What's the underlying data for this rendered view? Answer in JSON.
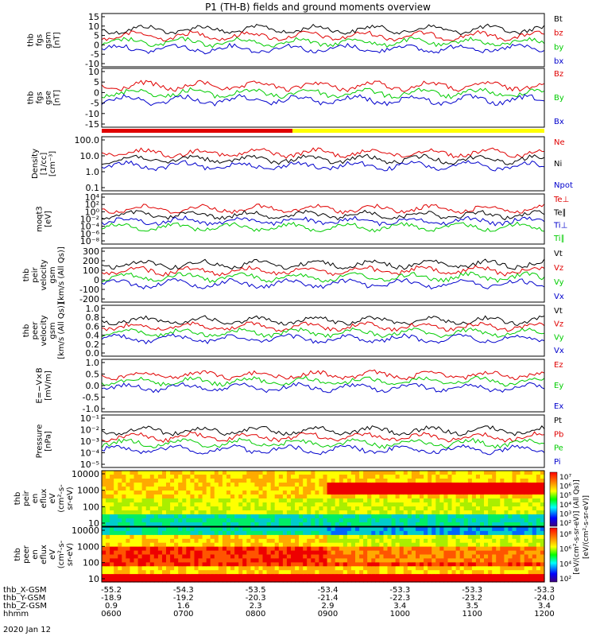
{
  "title": "P1 (TH-B) fields and ground moments overview",
  "footer": {
    "rows": [
      {
        "label": "thb_X-GSM",
        "values": [
          "-55.2",
          "-54.3",
          "-53.5",
          "-53.4",
          "-53.3",
          "-53.3",
          "-53.3"
        ]
      },
      {
        "label": "thb_Y-GSM",
        "values": [
          "-18.9",
          "-19.2",
          "-20.3",
          "-21.4",
          "-22.3",
          "-23.2",
          "-24.0"
        ]
      },
      {
        "label": "thb_Z-GSM",
        "values": [
          "0.9",
          "1.6",
          "2.3",
          "2.9",
          "3.4",
          "3.5",
          "3.4"
        ]
      },
      {
        "label": "hhmm",
        "values": [
          "0600",
          "0700",
          "0800",
          "0900",
          "1000",
          "1100",
          "1200"
        ]
      }
    ],
    "date": "2020 Jan 12"
  },
  "colorbar": {
    "ticks": [
      "10⁷",
      "10⁶",
      "10⁵",
      "10⁴",
      "10³",
      "10²"
    ],
    "ticks2": [
      "10⁸",
      "10⁶",
      "10⁴",
      "10²"
    ],
    "label": "[eV/(cm²-s-sr-eV)] (All Qs)]",
    "label2": "[eV/(cm²-s-sr-eV)]"
  },
  "colors": {
    "black": "#000000",
    "red": "#e00000",
    "green": "#00cc00",
    "blue": "#0000cc",
    "yellow": "#ffff00"
  },
  "chart_data": [
    {
      "id": "fgs_gsm",
      "type": "line",
      "ylabel": [
        "thb",
        "fgs",
        "gsm",
        "[nT]"
      ],
      "yticks": [
        "15",
        "10",
        "5",
        "0",
        "-5",
        "-10"
      ],
      "ylim": [
        -10,
        16
      ],
      "series": [
        {
          "name": "Bt",
          "color": "black"
        },
        {
          "name": "bz",
          "color": "red"
        },
        {
          "name": "by",
          "color": "green"
        },
        {
          "name": "bx",
          "color": "blue"
        }
      ]
    },
    {
      "id": "fgs_gse",
      "type": "line",
      "ylabel": [
        "thb",
        "fgs",
        "gse",
        "[nT]"
      ],
      "yticks": [
        "10",
        "5",
        "0",
        "-5",
        "-10",
        "-15"
      ],
      "ylim": [
        -18,
        12
      ],
      "series": [
        {
          "name": "Bz",
          "color": "red"
        },
        {
          "name": "By",
          "color": "green"
        },
        {
          "name": "Bx",
          "color": "blue"
        }
      ]
    },
    {
      "id": "density",
      "type": "line",
      "ylabel": [
        "Density",
        "[1/cc]",
        "[cm⁻³]"
      ],
      "yticks": [
        "100.0",
        "10.0",
        "1.0",
        "0.1"
      ],
      "log": true,
      "ylim": [
        0.1,
        100
      ],
      "series": [
        {
          "name": "Ne",
          "color": "red"
        },
        {
          "name": "Ni",
          "color": "black"
        },
        {
          "name": "Npot",
          "color": "blue"
        }
      ]
    },
    {
      "id": "temperature",
      "type": "line",
      "ylabel": [
        "moqt3",
        "[eV]"
      ],
      "yticks": [
        "10⁴",
        "10²",
        "10⁰",
        "10⁻²",
        "10⁻⁴",
        "10⁻⁶",
        "10⁻⁸"
      ],
      "log": true,
      "ylim": [
        1e-08,
        10000.0
      ],
      "series": [
        {
          "name": "Te⊥",
          "color": "red"
        },
        {
          "name": "Te∥",
          "color": "black"
        },
        {
          "name": "Ti⊥",
          "color": "blue"
        },
        {
          "name": "Ti∥",
          "color": "green"
        }
      ]
    },
    {
      "id": "peir_velocity",
      "type": "line",
      "ylabel": [
        "thb",
        "peir",
        "velocity",
        "gsm",
        "[km/s (All Qs)]"
      ],
      "yticks": [
        "300",
        "200",
        "100",
        "0",
        "-100",
        "-200"
      ],
      "ylim": [
        -200,
        300
      ],
      "series": [
        {
          "name": "Vt",
          "color": "black"
        },
        {
          "name": "Vz",
          "color": "red"
        },
        {
          "name": "Vy",
          "color": "green"
        },
        {
          "name": "Vx",
          "color": "blue"
        }
      ]
    },
    {
      "id": "peer_velocity",
      "type": "line",
      "ylabel": [
        "thb",
        "peer",
        "velocity",
        "gsm",
        "[km/s (All Qs)]"
      ],
      "yticks": [
        "1.0",
        "0.8",
        "0.6",
        "0.4",
        "0.2",
        "0.0"
      ],
      "ylim": [
        0,
        1
      ],
      "series": [
        {
          "name": "Vt",
          "color": "black"
        },
        {
          "name": "Vz",
          "color": "red"
        },
        {
          "name": "Vy",
          "color": "green"
        },
        {
          "name": "Vx",
          "color": "blue"
        }
      ]
    },
    {
      "id": "efield",
      "type": "line",
      "ylabel": [
        "E=−V×B",
        "[mV/m]"
      ],
      "yticks": [
        "1.0",
        "0.5",
        "0.0",
        "-0.5",
        "-1.0"
      ],
      "ylim": [
        -1.1,
        1.1
      ],
      "series": [
        {
          "name": "Ez",
          "color": "red"
        },
        {
          "name": "Ey",
          "color": "green"
        },
        {
          "name": "Ex",
          "color": "blue"
        }
      ]
    },
    {
      "id": "pressure",
      "type": "line",
      "ylabel": [
        "Pressure",
        "[nPa]"
      ],
      "yticks": [
        "10⁻¹",
        "10⁻²",
        "10⁻³",
        "10⁻⁴",
        "10⁻⁵"
      ],
      "log": true,
      "ylim": [
        1e-05,
        0.1
      ],
      "series": [
        {
          "name": "Pt",
          "color": "black"
        },
        {
          "name": "Pb",
          "color": "red"
        },
        {
          "name": "Pe",
          "color": "green"
        },
        {
          "name": "Pi",
          "color": "blue"
        }
      ]
    },
    {
      "id": "peir_eflux",
      "type": "heatmap",
      "ylabel": [
        "thb",
        "peir",
        "en",
        "eflux",
        "eV",
        "(cm²-s-",
        "sr-eV)"
      ],
      "yticks": [
        "10000",
        "1000",
        "100",
        "10"
      ],
      "log": true,
      "ylim": [
        5,
        20000
      ]
    },
    {
      "id": "peer_eflux",
      "type": "heatmap",
      "ylabel": [
        "thb",
        "peer",
        "en",
        "eflux",
        "eV",
        "(cm²-s-",
        "sr-eV)"
      ],
      "yticks": [
        "10000",
        "1000",
        "100",
        "10"
      ],
      "log": true,
      "ylim": [
        5,
        20000
      ]
    }
  ]
}
